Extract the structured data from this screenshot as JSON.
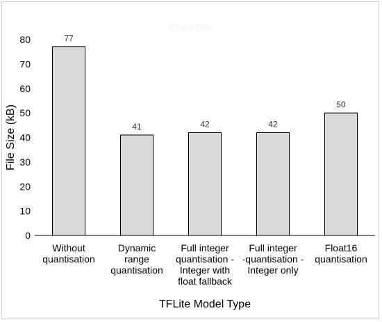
{
  "chart_data": {
    "type": "bar",
    "title": "Chart Title",
    "categories": [
      [
        "Without",
        "quantisation"
      ],
      [
        "Dynamic",
        "range",
        "quantisation"
      ],
      [
        "Full integer",
        "quantisation -",
        "Integer with",
        "float fallback"
      ],
      [
        "Full integer",
        "-quantisation -",
        "Integer only"
      ],
      [
        "Float16",
        "quantisation"
      ]
    ],
    "values": [
      77,
      41,
      42,
      42,
      50
    ],
    "xlabel": "TFLite Model Type",
    "ylabel": "File Size (kB)",
    "ylim": [
      0,
      80
    ],
    "yticks": [
      0,
      10,
      20,
      30,
      40,
      50,
      60,
      70,
      80
    ],
    "grid": false,
    "colors": {
      "bar_fill": "#d9d9d9",
      "bar_stroke": "#000000",
      "axis": "#000000"
    }
  }
}
